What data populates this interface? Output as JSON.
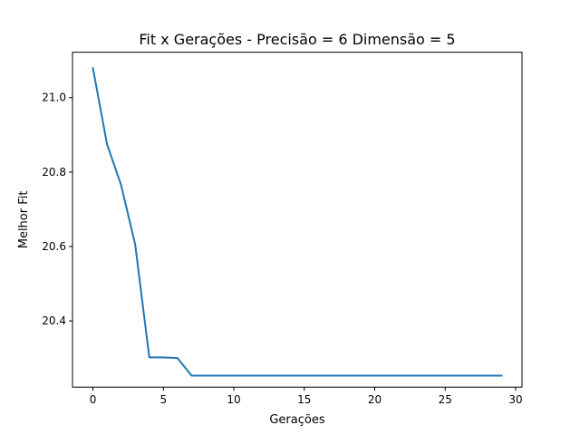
{
  "chart_data": {
    "type": "line",
    "title": "Fit x Gerações - Precisão = 6 Dimensão = 5",
    "xlabel": "Gerações",
    "ylabel": "Melhor Fit",
    "xlim": [
      -1.45,
      30.45
    ],
    "ylim": [
      20.222,
      21.122
    ],
    "xticks": [
      0,
      5,
      10,
      15,
      20,
      25,
      30
    ],
    "xtick_labels": [
      "0",
      "5",
      "10",
      "15",
      "20",
      "25",
      "30"
    ],
    "yticks": [
      20.4,
      20.6,
      20.8,
      21.0
    ],
    "ytick_labels": [
      "20.4",
      "20.6",
      "20.8",
      "21.0"
    ],
    "grid": false,
    "series": [
      {
        "color": "#1f77b4",
        "x": [
          0,
          1,
          2,
          3,
          4,
          5,
          6,
          7,
          8,
          9,
          10,
          11,
          12,
          13,
          14,
          15,
          16,
          17,
          18,
          19,
          20,
          21,
          22,
          23,
          24,
          25,
          26,
          27,
          28,
          29
        ],
        "values": [
          21.079,
          20.875,
          20.765,
          20.605,
          20.302,
          20.302,
          20.3,
          20.253,
          20.253,
          20.253,
          20.253,
          20.253,
          20.253,
          20.253,
          20.253,
          20.253,
          20.253,
          20.253,
          20.253,
          20.253,
          20.253,
          20.253,
          20.253,
          20.253,
          20.253,
          20.253,
          20.253,
          20.253,
          20.253,
          20.253
        ]
      }
    ]
  }
}
